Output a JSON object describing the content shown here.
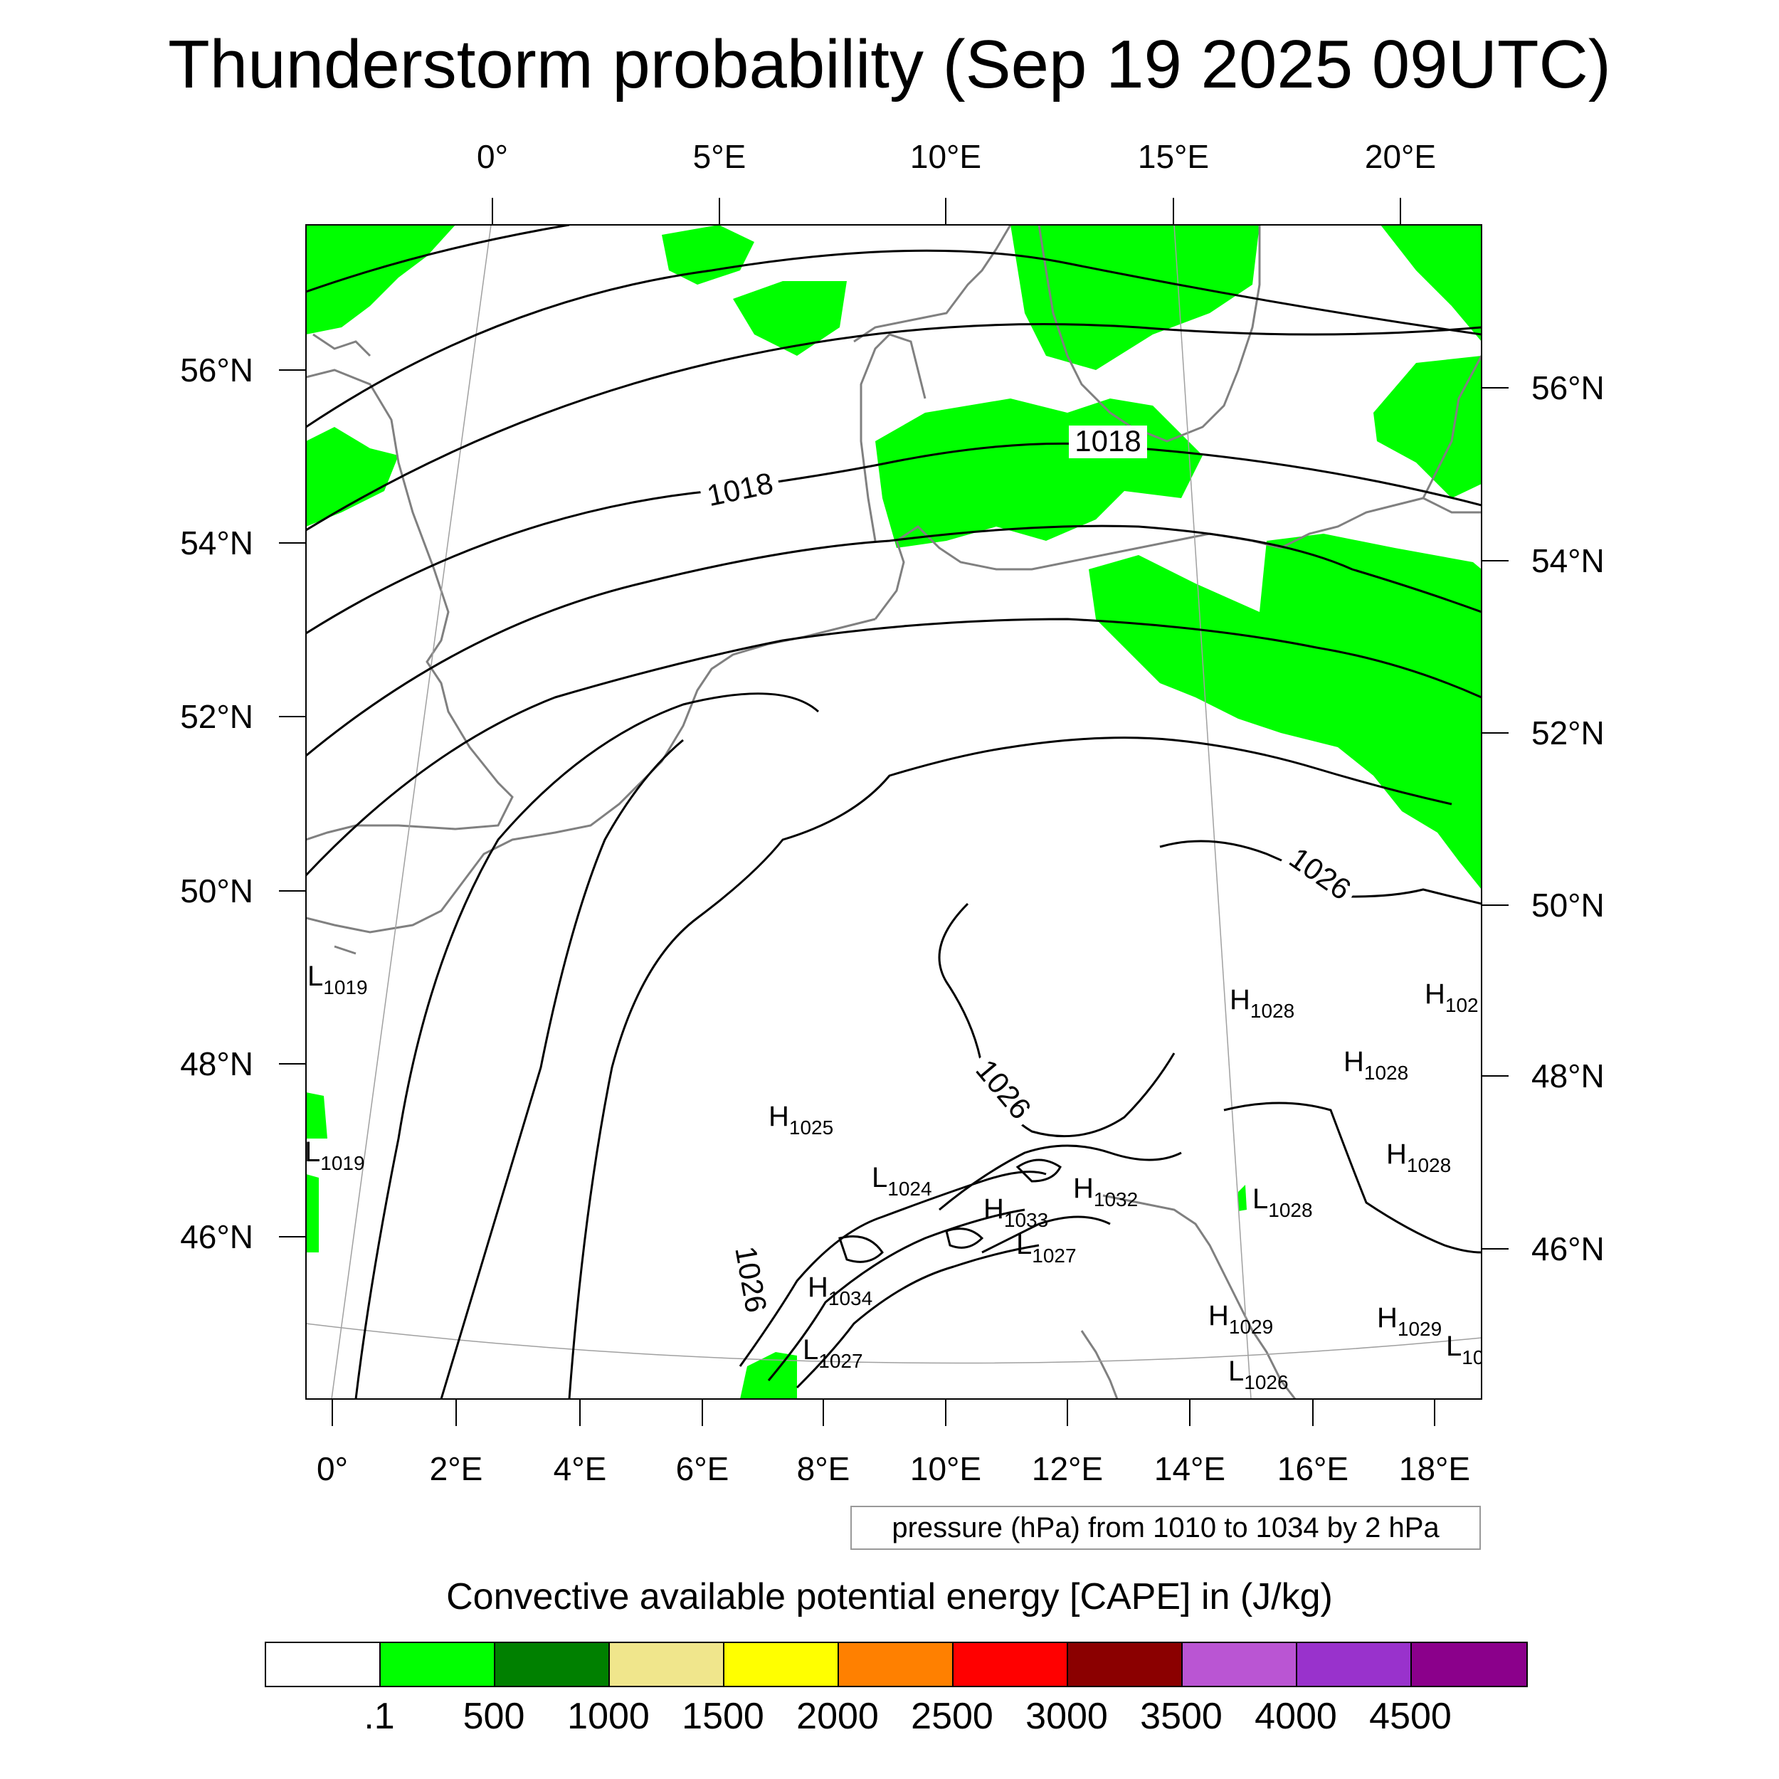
{
  "title": "Thunderstorm probability (Sep 19 2025 09UTC)",
  "top_lon_labels": [
    "0°",
    "5°E",
    "10°E",
    "15°E",
    "20°E"
  ],
  "bottom_lon_labels": [
    "0°",
    "2°E",
    "4°E",
    "6°E",
    "8°E",
    "10°E",
    "12°E",
    "14°E",
    "16°E",
    "18°E"
  ],
  "left_lat_labels": [
    "56°N",
    "54°N",
    "52°N",
    "50°N",
    "48°N",
    "46°N"
  ],
  "right_lat_labels": [
    "56°N",
    "54°N",
    "52°N",
    "50°N",
    "48°N",
    "46°N"
  ],
  "contour_labels": [
    "1018",
    "1018",
    "1026",
    "1026",
    "1026"
  ],
  "pressure_centers": [
    {
      "kind": "L",
      "value": "1019"
    },
    {
      "kind": "L",
      "value": "1019"
    },
    {
      "kind": "H",
      "value": "1025"
    },
    {
      "kind": "L",
      "value": "1024"
    },
    {
      "kind": "H",
      "value": "1033"
    },
    {
      "kind": "H",
      "value": "1032"
    },
    {
      "kind": "L",
      "value": "1027"
    },
    {
      "kind": "H",
      "value": "1034"
    },
    {
      "kind": "L",
      "value": "1027"
    },
    {
      "kind": "H",
      "value": "1028"
    },
    {
      "kind": "H",
      "value": "102"
    },
    {
      "kind": "H",
      "value": "1028"
    },
    {
      "kind": "H",
      "value": "1028"
    },
    {
      "kind": "L",
      "value": "1028"
    },
    {
      "kind": "H",
      "value": "1029"
    },
    {
      "kind": "H",
      "value": "1029"
    },
    {
      "kind": "L",
      "value": "10"
    },
    {
      "kind": "L",
      "value": "1026"
    }
  ],
  "info_text": "pressure (hPa) from 1010 to 1034 by 2 hPa",
  "colorbar": {
    "title": "Convective available potential energy [CAPE] in (J/kg)",
    "colors": [
      "#ffffff",
      "#00ff00",
      "#008000",
      "#f0e68c",
      "#ffff00",
      "#ff8000",
      "#ff0000",
      "#8b0000",
      "#ba55d3",
      "#9932cc",
      "#8b008b"
    ],
    "tick_labels": [
      ".1",
      "500",
      "1000",
      "1500",
      "2000",
      "2500",
      "3000",
      "3500",
      "4000",
      "4500"
    ]
  },
  "colors": {
    "cape_fill": "#00ff00",
    "isobar": "#000000",
    "coastline": "#808080",
    "graticule": "#a0a0a0"
  }
}
